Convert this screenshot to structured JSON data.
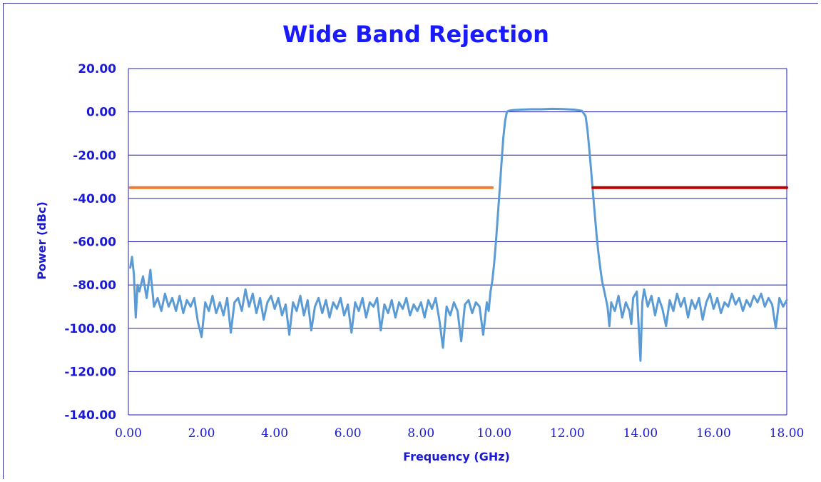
{
  "chart_data": {
    "type": "line",
    "title": "Wide Band Rejection",
    "xlabel": "Frequency (GHz)",
    "ylabel": "Power (dBc)",
    "xlim": [
      0,
      18
    ],
    "ylim": [
      -140,
      20
    ],
    "x_ticks": [
      "0.00",
      "2.00",
      "4.00",
      "6.00",
      "8.00",
      "10.00",
      "12.00",
      "14.00",
      "16.00",
      "18.00"
    ],
    "y_ticks": [
      "20.00",
      "0.00",
      "-20.00",
      "-40.00",
      "-60.00",
      "-80.00",
      "-100.00",
      "-120.00",
      "-140.00"
    ],
    "grid": "horizontal",
    "legend": "none",
    "series": [
      {
        "color": "#5b9bd5",
        "points": [
          [
            0.05,
            -72
          ],
          [
            0.1,
            -67
          ],
          [
            0.15,
            -75
          ],
          [
            0.2,
            -95
          ],
          [
            0.25,
            -80
          ],
          [
            0.3,
            -83
          ],
          [
            0.4,
            -76
          ],
          [
            0.5,
            -86
          ],
          [
            0.6,
            -73
          ],
          [
            0.7,
            -90
          ],
          [
            0.8,
            -86
          ],
          [
            0.9,
            -92
          ],
          [
            1.0,
            -84
          ],
          [
            1.1,
            -90
          ],
          [
            1.2,
            -86
          ],
          [
            1.3,
            -92
          ],
          [
            1.4,
            -85
          ],
          [
            1.5,
            -93
          ],
          [
            1.6,
            -87
          ],
          [
            1.7,
            -90
          ],
          [
            1.8,
            -86
          ],
          [
            1.9,
            -97
          ],
          [
            2.0,
            -104
          ],
          [
            2.1,
            -88
          ],
          [
            2.2,
            -92
          ],
          [
            2.3,
            -85
          ],
          [
            2.4,
            -93
          ],
          [
            2.5,
            -88
          ],
          [
            2.6,
            -94
          ],
          [
            2.7,
            -86
          ],
          [
            2.8,
            -102
          ],
          [
            2.9,
            -88
          ],
          [
            3.0,
            -86
          ],
          [
            3.1,
            -92
          ],
          [
            3.2,
            -82
          ],
          [
            3.3,
            -90
          ],
          [
            3.4,
            -84
          ],
          [
            3.5,
            -93
          ],
          [
            3.6,
            -86
          ],
          [
            3.7,
            -96
          ],
          [
            3.8,
            -88
          ],
          [
            3.9,
            -85
          ],
          [
            4.0,
            -91
          ],
          [
            4.1,
            -86
          ],
          [
            4.2,
            -94
          ],
          [
            4.3,
            -89
          ],
          [
            4.4,
            -103
          ],
          [
            4.5,
            -88
          ],
          [
            4.6,
            -92
          ],
          [
            4.7,
            -85
          ],
          [
            4.8,
            -94
          ],
          [
            4.9,
            -87
          ],
          [
            5.0,
            -101
          ],
          [
            5.1,
            -90
          ],
          [
            5.2,
            -86
          ],
          [
            5.3,
            -93
          ],
          [
            5.4,
            -87
          ],
          [
            5.5,
            -95
          ],
          [
            5.6,
            -88
          ],
          [
            5.7,
            -91
          ],
          [
            5.8,
            -86
          ],
          [
            5.9,
            -94
          ],
          [
            6.0,
            -89
          ],
          [
            6.1,
            -102
          ],
          [
            6.2,
            -88
          ],
          [
            6.3,
            -92
          ],
          [
            6.4,
            -86
          ],
          [
            6.5,
            -95
          ],
          [
            6.6,
            -88
          ],
          [
            6.7,
            -90
          ],
          [
            6.8,
            -86
          ],
          [
            6.9,
            -101
          ],
          [
            7.0,
            -89
          ],
          [
            7.1,
            -93
          ],
          [
            7.2,
            -87
          ],
          [
            7.3,
            -95
          ],
          [
            7.4,
            -88
          ],
          [
            7.5,
            -91
          ],
          [
            7.6,
            -86
          ],
          [
            7.7,
            -94
          ],
          [
            7.8,
            -89
          ],
          [
            7.9,
            -92
          ],
          [
            8.0,
            -88
          ],
          [
            8.1,
            -95
          ],
          [
            8.2,
            -87
          ],
          [
            8.3,
            -91
          ],
          [
            8.4,
            -86
          ],
          [
            8.5,
            -96
          ],
          [
            8.6,
            -109
          ],
          [
            8.7,
            -90
          ],
          [
            8.8,
            -94
          ],
          [
            8.9,
            -88
          ],
          [
            9.0,
            -92
          ],
          [
            9.1,
            -106
          ],
          [
            9.2,
            -89
          ],
          [
            9.3,
            -87
          ],
          [
            9.4,
            -93
          ],
          [
            9.5,
            -88
          ],
          [
            9.6,
            -90
          ],
          [
            9.7,
            -103
          ],
          [
            9.8,
            -88
          ],
          [
            9.85,
            -92
          ],
          [
            9.9,
            -83
          ],
          [
            9.95,
            -78
          ],
          [
            10.0,
            -70
          ],
          [
            10.05,
            -60
          ],
          [
            10.1,
            -48
          ],
          [
            10.15,
            -36
          ],
          [
            10.2,
            -24
          ],
          [
            10.25,
            -12
          ],
          [
            10.3,
            -4
          ],
          [
            10.35,
            0
          ],
          [
            10.4,
            0.5
          ],
          [
            10.5,
            0.8
          ],
          [
            10.7,
            1.0
          ],
          [
            11.0,
            1.2
          ],
          [
            11.3,
            1.2
          ],
          [
            11.6,
            1.4
          ],
          [
            11.9,
            1.3
          ],
          [
            12.2,
            1.0
          ],
          [
            12.4,
            0.5
          ],
          [
            12.5,
            -2
          ],
          [
            12.55,
            -8
          ],
          [
            12.6,
            -17
          ],
          [
            12.65,
            -27
          ],
          [
            12.7,
            -37
          ],
          [
            12.75,
            -47
          ],
          [
            12.8,
            -57
          ],
          [
            12.85,
            -65
          ],
          [
            12.9,
            -72
          ],
          [
            12.95,
            -78
          ],
          [
            13.0,
            -82
          ],
          [
            13.05,
            -86
          ],
          [
            13.1,
            -90
          ],
          [
            13.15,
            -99
          ],
          [
            13.2,
            -88
          ],
          [
            13.3,
            -92
          ],
          [
            13.4,
            -85
          ],
          [
            13.5,
            -95
          ],
          [
            13.6,
            -88
          ],
          [
            13.7,
            -92
          ],
          [
            13.75,
            -98
          ],
          [
            13.8,
            -86
          ],
          [
            13.9,
            -83
          ],
          [
            14.0,
            -115
          ],
          [
            14.05,
            -88
          ],
          [
            14.1,
            -82
          ],
          [
            14.2,
            -90
          ],
          [
            14.3,
            -85
          ],
          [
            14.4,
            -94
          ],
          [
            14.5,
            -86
          ],
          [
            14.6,
            -91
          ],
          [
            14.7,
            -99
          ],
          [
            14.8,
            -87
          ],
          [
            14.9,
            -92
          ],
          [
            15.0,
            -84
          ],
          [
            15.1,
            -90
          ],
          [
            15.2,
            -86
          ],
          [
            15.3,
            -95
          ],
          [
            15.4,
            -87
          ],
          [
            15.5,
            -91
          ],
          [
            15.6,
            -86
          ],
          [
            15.7,
            -96
          ],
          [
            15.8,
            -88
          ],
          [
            15.9,
            -84
          ],
          [
            16.0,
            -91
          ],
          [
            16.1,
            -86
          ],
          [
            16.2,
            -93
          ],
          [
            16.3,
            -88
          ],
          [
            16.4,
            -90
          ],
          [
            16.5,
            -84
          ],
          [
            16.6,
            -89
          ],
          [
            16.7,
            -86
          ],
          [
            16.8,
            -92
          ],
          [
            16.9,
            -87
          ],
          [
            17.0,
            -90
          ],
          [
            17.1,
            -85
          ],
          [
            17.2,
            -88
          ],
          [
            17.3,
            -84
          ],
          [
            17.4,
            -90
          ],
          [
            17.5,
            -86
          ],
          [
            17.6,
            -89
          ],
          [
            17.7,
            -100
          ],
          [
            17.8,
            -86
          ],
          [
            17.9,
            -90
          ],
          [
            18.0,
            -87
          ]
        ]
      },
      {
        "color": "#ed7d31",
        "points": [
          [
            0.05,
            -35
          ],
          [
            9.95,
            -35
          ]
        ]
      },
      {
        "color": "#c00000",
        "points": [
          [
            12.7,
            -35
          ],
          [
            18.0,
            -35
          ]
        ]
      }
    ]
  }
}
